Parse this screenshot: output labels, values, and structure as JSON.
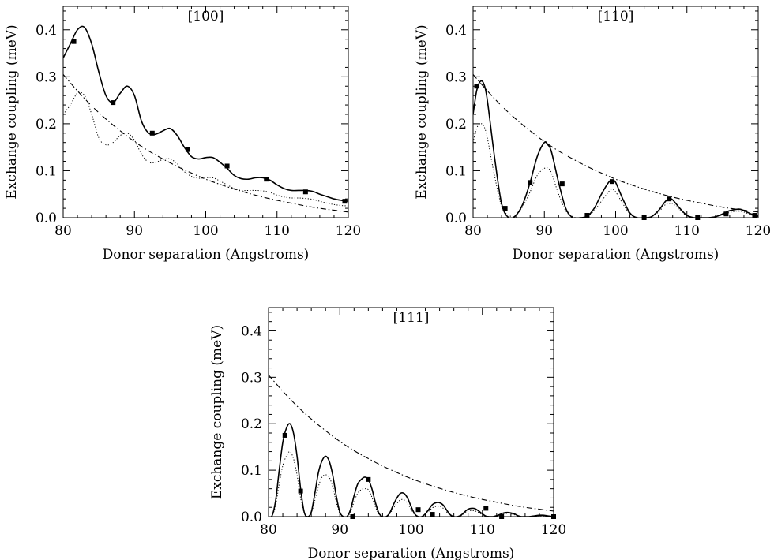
{
  "chart_data": [
    {
      "type": "line",
      "title": "[100]",
      "xlabel": "Donor separation (Angstroms)",
      "ylabel": "Exchange coupling (meV)",
      "xlim": [
        80,
        120
      ],
      "ylim": [
        0,
        0.45
      ],
      "x_ticks": [
        "80",
        "90",
        "100",
        "110",
        "120"
      ],
      "y_ticks": [
        "0.0",
        "0.1",
        "0.2",
        "0.3",
        "0.4"
      ],
      "series": [
        {
          "style": "solid",
          "x": [
            80,
            81,
            82,
            83,
            84,
            85,
            86,
            87,
            88,
            89,
            90,
            91,
            92,
            93,
            94,
            95,
            96,
            97,
            98,
            99,
            100,
            101,
            102,
            103,
            104,
            105,
            106,
            107,
            108,
            109,
            110,
            111,
            112,
            113,
            114,
            115,
            116,
            117,
            118,
            119,
            120
          ],
          "y": [
            0.34,
            0.37,
            0.4,
            0.405,
            0.37,
            0.31,
            0.26,
            0.245,
            0.265,
            0.28,
            0.26,
            0.205,
            0.18,
            0.178,
            0.185,
            0.19,
            0.175,
            0.15,
            0.13,
            0.125,
            0.128,
            0.128,
            0.118,
            0.105,
            0.09,
            0.083,
            0.082,
            0.085,
            0.085,
            0.08,
            0.07,
            0.062,
            0.058,
            0.058,
            0.058,
            0.056,
            0.05,
            0.045,
            0.04,
            0.037,
            0.035
          ]
        },
        {
          "style": "dotted",
          "x": [
            80,
            81,
            82,
            83,
            84,
            85,
            86,
            87,
            88,
            89,
            90,
            91,
            92,
            93,
            94,
            95,
            96,
            97,
            98,
            99,
            100,
            101,
            102,
            103,
            104,
            105,
            106,
            107,
            108,
            109,
            110,
            111,
            112,
            113,
            114,
            115,
            116,
            117,
            118,
            119,
            120
          ],
          "y": [
            0.22,
            0.24,
            0.265,
            0.26,
            0.22,
            0.17,
            0.155,
            0.16,
            0.175,
            0.18,
            0.165,
            0.135,
            0.118,
            0.118,
            0.124,
            0.125,
            0.115,
            0.098,
            0.088,
            0.084,
            0.085,
            0.085,
            0.078,
            0.07,
            0.062,
            0.058,
            0.058,
            0.058,
            0.057,
            0.054,
            0.048,
            0.044,
            0.042,
            0.042,
            0.041,
            0.039,
            0.035,
            0.031,
            0.028,
            0.026,
            0.025
          ]
        },
        {
          "style": "dash-dot",
          "x": [
            80,
            82,
            84,
            86,
            88,
            90,
            92,
            94,
            96,
            98,
            100,
            102,
            104,
            106,
            108,
            110,
            112,
            114,
            116,
            118,
            120
          ],
          "y": [
            0.305,
            0.27,
            0.238,
            0.21,
            0.185,
            0.162,
            0.142,
            0.125,
            0.109,
            0.095,
            0.082,
            0.071,
            0.061,
            0.052,
            0.044,
            0.037,
            0.031,
            0.025,
            0.02,
            0.016,
            0.012
          ]
        },
        {
          "style": "markers",
          "x": [
            81.5,
            87,
            92.5,
            97.5,
            103,
            108.5,
            114,
            119.5
          ],
          "y": [
            0.375,
            0.245,
            0.18,
            0.145,
            0.11,
            0.082,
            0.055,
            0.035
          ]
        }
      ]
    },
    {
      "type": "line",
      "title": "[110]",
      "xlabel": "Donor separation (Angstroms)",
      "ylabel": "Exchange coupling (meV)",
      "xlim": [
        80,
        120
      ],
      "ylim": [
        0,
        0.45
      ],
      "x_ticks": [
        "80",
        "90",
        "100",
        "110",
        "120"
      ],
      "y_ticks": [
        "0.0",
        "0.1",
        "0.2",
        "0.3",
        "0.4"
      ],
      "series": [
        {
          "style": "solid",
          "x": [
            80,
            80.5,
            81,
            81.5,
            82,
            83,
            84,
            85,
            86,
            87,
            88,
            89,
            90,
            90.5,
            91,
            92,
            93,
            94,
            95,
            96,
            97,
            98,
            99,
            99.5,
            100,
            101,
            102,
            103,
            104,
            105,
            106,
            107,
            107.5,
            108,
            109,
            110,
            111,
            112,
            113,
            114,
            115,
            116,
            117,
            117.5,
            118,
            119,
            120
          ],
          "y": [
            0.22,
            0.27,
            0.29,
            0.285,
            0.25,
            0.13,
            0.03,
            0.0,
            0.005,
            0.03,
            0.075,
            0.13,
            0.16,
            0.155,
            0.14,
            0.075,
            0.02,
            0.0,
            0.0,
            0.003,
            0.02,
            0.05,
            0.075,
            0.08,
            0.075,
            0.04,
            0.01,
            0.0,
            0.0,
            0.002,
            0.015,
            0.035,
            0.04,
            0.038,
            0.02,
            0.005,
            0.0,
            0.0,
            0.0,
            0.002,
            0.008,
            0.015,
            0.018,
            0.018,
            0.015,
            0.008,
            0.003
          ]
        },
        {
          "style": "dotted",
          "x": [
            80,
            80.5,
            81,
            81.5,
            82,
            83,
            84,
            85,
            86,
            87,
            88,
            89,
            90,
            90.5,
            91,
            92,
            93,
            94,
            95,
            96,
            97,
            98,
            99,
            99.5,
            100,
            101,
            102,
            103,
            104,
            105,
            106,
            107,
            107.5,
            108,
            109,
            110,
            111,
            112,
            113,
            114,
            115,
            116,
            117,
            118,
            119,
            120
          ],
          "y": [
            0.16,
            0.19,
            0.2,
            0.195,
            0.17,
            0.09,
            0.025,
            0.005,
            0.005,
            0.025,
            0.055,
            0.09,
            0.105,
            0.105,
            0.095,
            0.05,
            0.015,
            0.002,
            0.0,
            0.003,
            0.015,
            0.035,
            0.055,
            0.06,
            0.055,
            0.03,
            0.008,
            0.0,
            0.0,
            0.002,
            0.012,
            0.028,
            0.03,
            0.03,
            0.016,
            0.004,
            0.0,
            0.0,
            0.0,
            0.002,
            0.006,
            0.011,
            0.014,
            0.012,
            0.006,
            0.002
          ]
        },
        {
          "style": "dash-dot",
          "x": [
            80,
            82,
            84,
            86,
            88,
            90,
            92,
            94,
            96,
            98,
            100,
            102,
            104,
            106,
            108,
            110,
            112,
            114,
            116,
            118,
            120
          ],
          "y": [
            0.305,
            0.27,
            0.238,
            0.21,
            0.185,
            0.162,
            0.142,
            0.125,
            0.109,
            0.095,
            0.082,
            0.071,
            0.061,
            0.052,
            0.044,
            0.037,
            0.031,
            0.025,
            0.02,
            0.016,
            0.012
          ]
        },
        {
          "style": "markers",
          "x": [
            80.5,
            84.5,
            88,
            92.5,
            96,
            99.5,
            104,
            107.5,
            111.5,
            115.5,
            119.5
          ],
          "y": [
            0.28,
            0.02,
            0.075,
            0.072,
            0.005,
            0.077,
            0.0,
            0.04,
            0.0,
            0.008,
            0.005
          ]
        }
      ]
    },
    {
      "type": "line",
      "title": "[111]",
      "xlabel": "Donor separation (Angstroms)",
      "ylabel": "Exchange coupling (meV)",
      "xlim": [
        80,
        120
      ],
      "ylim": [
        0,
        0.45
      ],
      "x_ticks": [
        "80",
        "90",
        "100",
        "110",
        "120"
      ],
      "y_ticks": [
        "0.0",
        "0.1",
        "0.2",
        "0.3",
        "0.4"
      ],
      "series": [
        {
          "style": "solid",
          "x": [
            80,
            80.5,
            81,
            81.5,
            82,
            82.5,
            83,
            83.5,
            84,
            84.5,
            85,
            85.5,
            86,
            86.5,
            87,
            87.5,
            88,
            88.5,
            89,
            89.5,
            90,
            90.5,
            91,
            91.5,
            92,
            92.5,
            93,
            93.5,
            94,
            94.5,
            95,
            95.5,
            96,
            96.5,
            97,
            97.5,
            98,
            98.5,
            99,
            99.5,
            100,
            100.5,
            101,
            101.5,
            102,
            102.5,
            103,
            103.5,
            104,
            104.5,
            105,
            105.5,
            106,
            106.5,
            107,
            107.5,
            108,
            108.5,
            109,
            109.5,
            110,
            110.5,
            111,
            111.5,
            112,
            112.5,
            113,
            113.5,
            114,
            114.5,
            115,
            115.5,
            116,
            116.5,
            117,
            117.5,
            118,
            118.5,
            119,
            119.5,
            120
          ],
          "y": [
            0,
            0.002,
            0.035,
            0.1,
            0.16,
            0.19,
            0.2,
            0.18,
            0.13,
            0.06,
            0.01,
            0.0,
            0.01,
            0.05,
            0.095,
            0.12,
            0.13,
            0.12,
            0.09,
            0.045,
            0.01,
            0.0,
            0.0,
            0.015,
            0.045,
            0.07,
            0.08,
            0.085,
            0.08,
            0.06,
            0.03,
            0.007,
            0.0,
            0.0,
            0.008,
            0.025,
            0.04,
            0.05,
            0.05,
            0.04,
            0.022,
            0.006,
            0.0,
            0.0,
            0.006,
            0.016,
            0.026,
            0.03,
            0.03,
            0.025,
            0.014,
            0.004,
            0.0,
            0.0,
            0.003,
            0.01,
            0.016,
            0.018,
            0.017,
            0.012,
            0.006,
            0.001,
            0.0,
            0.0,
            0.002,
            0.005,
            0.008,
            0.009,
            0.008,
            0.006,
            0.002,
            0.0,
            0.0,
            0.0,
            0.001,
            0.002,
            0.003,
            0.003,
            0.002,
            0.001,
            0.0
          ]
        },
        {
          "style": "dotted",
          "x": [
            80,
            80.5,
            81,
            81.5,
            82,
            82.5,
            83,
            83.5,
            84,
            84.5,
            85,
            85.5,
            86,
            86.5,
            87,
            87.5,
            88,
            88.5,
            89,
            89.5,
            90,
            90.5,
            91,
            91.5,
            92,
            92.5,
            93,
            93.5,
            94,
            94.5,
            95,
            95.5,
            96,
            96.5,
            97,
            97.5,
            98,
            98.5,
            99,
            99.5,
            100,
            100.5,
            101,
            101.5,
            102,
            102.5,
            103,
            103.5,
            104,
            104.5,
            105,
            105.5,
            106,
            106.5,
            107,
            107.5,
            108,
            108.5,
            109,
            109.5,
            110,
            110.5,
            111,
            111.5,
            112,
            112.5,
            113,
            113.5,
            114,
            114.5,
            115,
            115.5,
            116,
            116.5,
            117,
            117.5,
            118,
            118.5,
            119,
            119.5,
            120
          ],
          "y": [
            0,
            0.002,
            0.025,
            0.07,
            0.11,
            0.13,
            0.14,
            0.125,
            0.09,
            0.04,
            0.008,
            0.0,
            0.008,
            0.035,
            0.065,
            0.085,
            0.09,
            0.085,
            0.065,
            0.032,
            0.007,
            0.0,
            0.0,
            0.01,
            0.032,
            0.05,
            0.058,
            0.06,
            0.058,
            0.042,
            0.021,
            0.005,
            0.0,
            0.0,
            0.006,
            0.018,
            0.028,
            0.036,
            0.036,
            0.028,
            0.016,
            0.004,
            0.0,
            0.0,
            0.004,
            0.012,
            0.019,
            0.022,
            0.022,
            0.018,
            0.01,
            0.003,
            0.0,
            0.0,
            0.002,
            0.007,
            0.012,
            0.013,
            0.012,
            0.009,
            0.004,
            0.001,
            0.0,
            0.0,
            0.001,
            0.004,
            0.006,
            0.007,
            0.006,
            0.004,
            0.002,
            0.0,
            0.0,
            0.0,
            0.001,
            0.002,
            0.002,
            0.002,
            0.002,
            0.001,
            0.0
          ]
        },
        {
          "style": "dash-dot",
          "x": [
            80,
            82,
            84,
            86,
            88,
            90,
            92,
            94,
            96,
            98,
            100,
            102,
            104,
            106,
            108,
            110,
            112,
            114,
            116,
            118,
            120
          ],
          "y": [
            0.305,
            0.27,
            0.238,
            0.21,
            0.185,
            0.162,
            0.142,
            0.125,
            0.109,
            0.095,
            0.082,
            0.071,
            0.061,
            0.052,
            0.044,
            0.037,
            0.031,
            0.025,
            0.02,
            0.016,
            0.012
          ]
        },
        {
          "style": "markers",
          "x": [
            82.3,
            84.5,
            91.8,
            94,
            101,
            103,
            110.5,
            112.7,
            120
          ],
          "y": [
            0.175,
            0.055,
            0.0,
            0.08,
            0.015,
            0.005,
            0.018,
            0.0,
            0.0
          ]
        }
      ]
    }
  ]
}
